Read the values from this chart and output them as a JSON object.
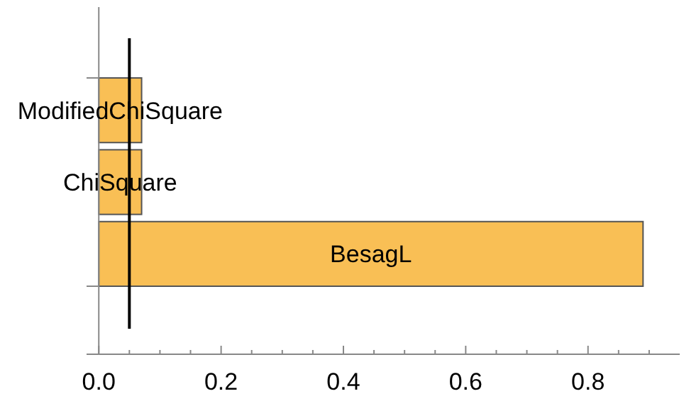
{
  "chart_data": {
    "type": "bar",
    "orientation": "horizontal",
    "categories": [
      "ModifiedChiSquare",
      "ChiSquare",
      "BesagL"
    ],
    "values": [
      0.07,
      0.07,
      0.89
    ],
    "color": "#f9bf55",
    "xlim": [
      -0.02,
      0.95
    ],
    "xticks": [
      {
        "value": 0,
        "label": "0.0"
      },
      {
        "value": 0.05,
        "label": null
      },
      {
        "value": 0.1,
        "label": null
      },
      {
        "value": 0.15,
        "label": null
      },
      {
        "value": 0.2,
        "label": "0.2"
      },
      {
        "value": 0.25,
        "label": null
      },
      {
        "value": 0.3,
        "label": null
      },
      {
        "value": 0.35,
        "label": null
      },
      {
        "value": 0.4,
        "label": "0.4"
      },
      {
        "value": 0.45,
        "label": null
      },
      {
        "value": 0.5,
        "label": null
      },
      {
        "value": 0.55,
        "label": null
      },
      {
        "value": 0.6,
        "label": "0.6"
      },
      {
        "value": 0.65,
        "label": null
      },
      {
        "value": 0.7,
        "label": null
      },
      {
        "value": 0.75,
        "label": null
      },
      {
        "value": 0.8,
        "label": "0.8"
      },
      {
        "value": 0.85,
        "label": null
      },
      {
        "value": 0.9,
        "label": null
      }
    ],
    "ref_lines": [
      {
        "axis": "x",
        "value": 0.05,
        "color": "#000000"
      }
    ]
  }
}
